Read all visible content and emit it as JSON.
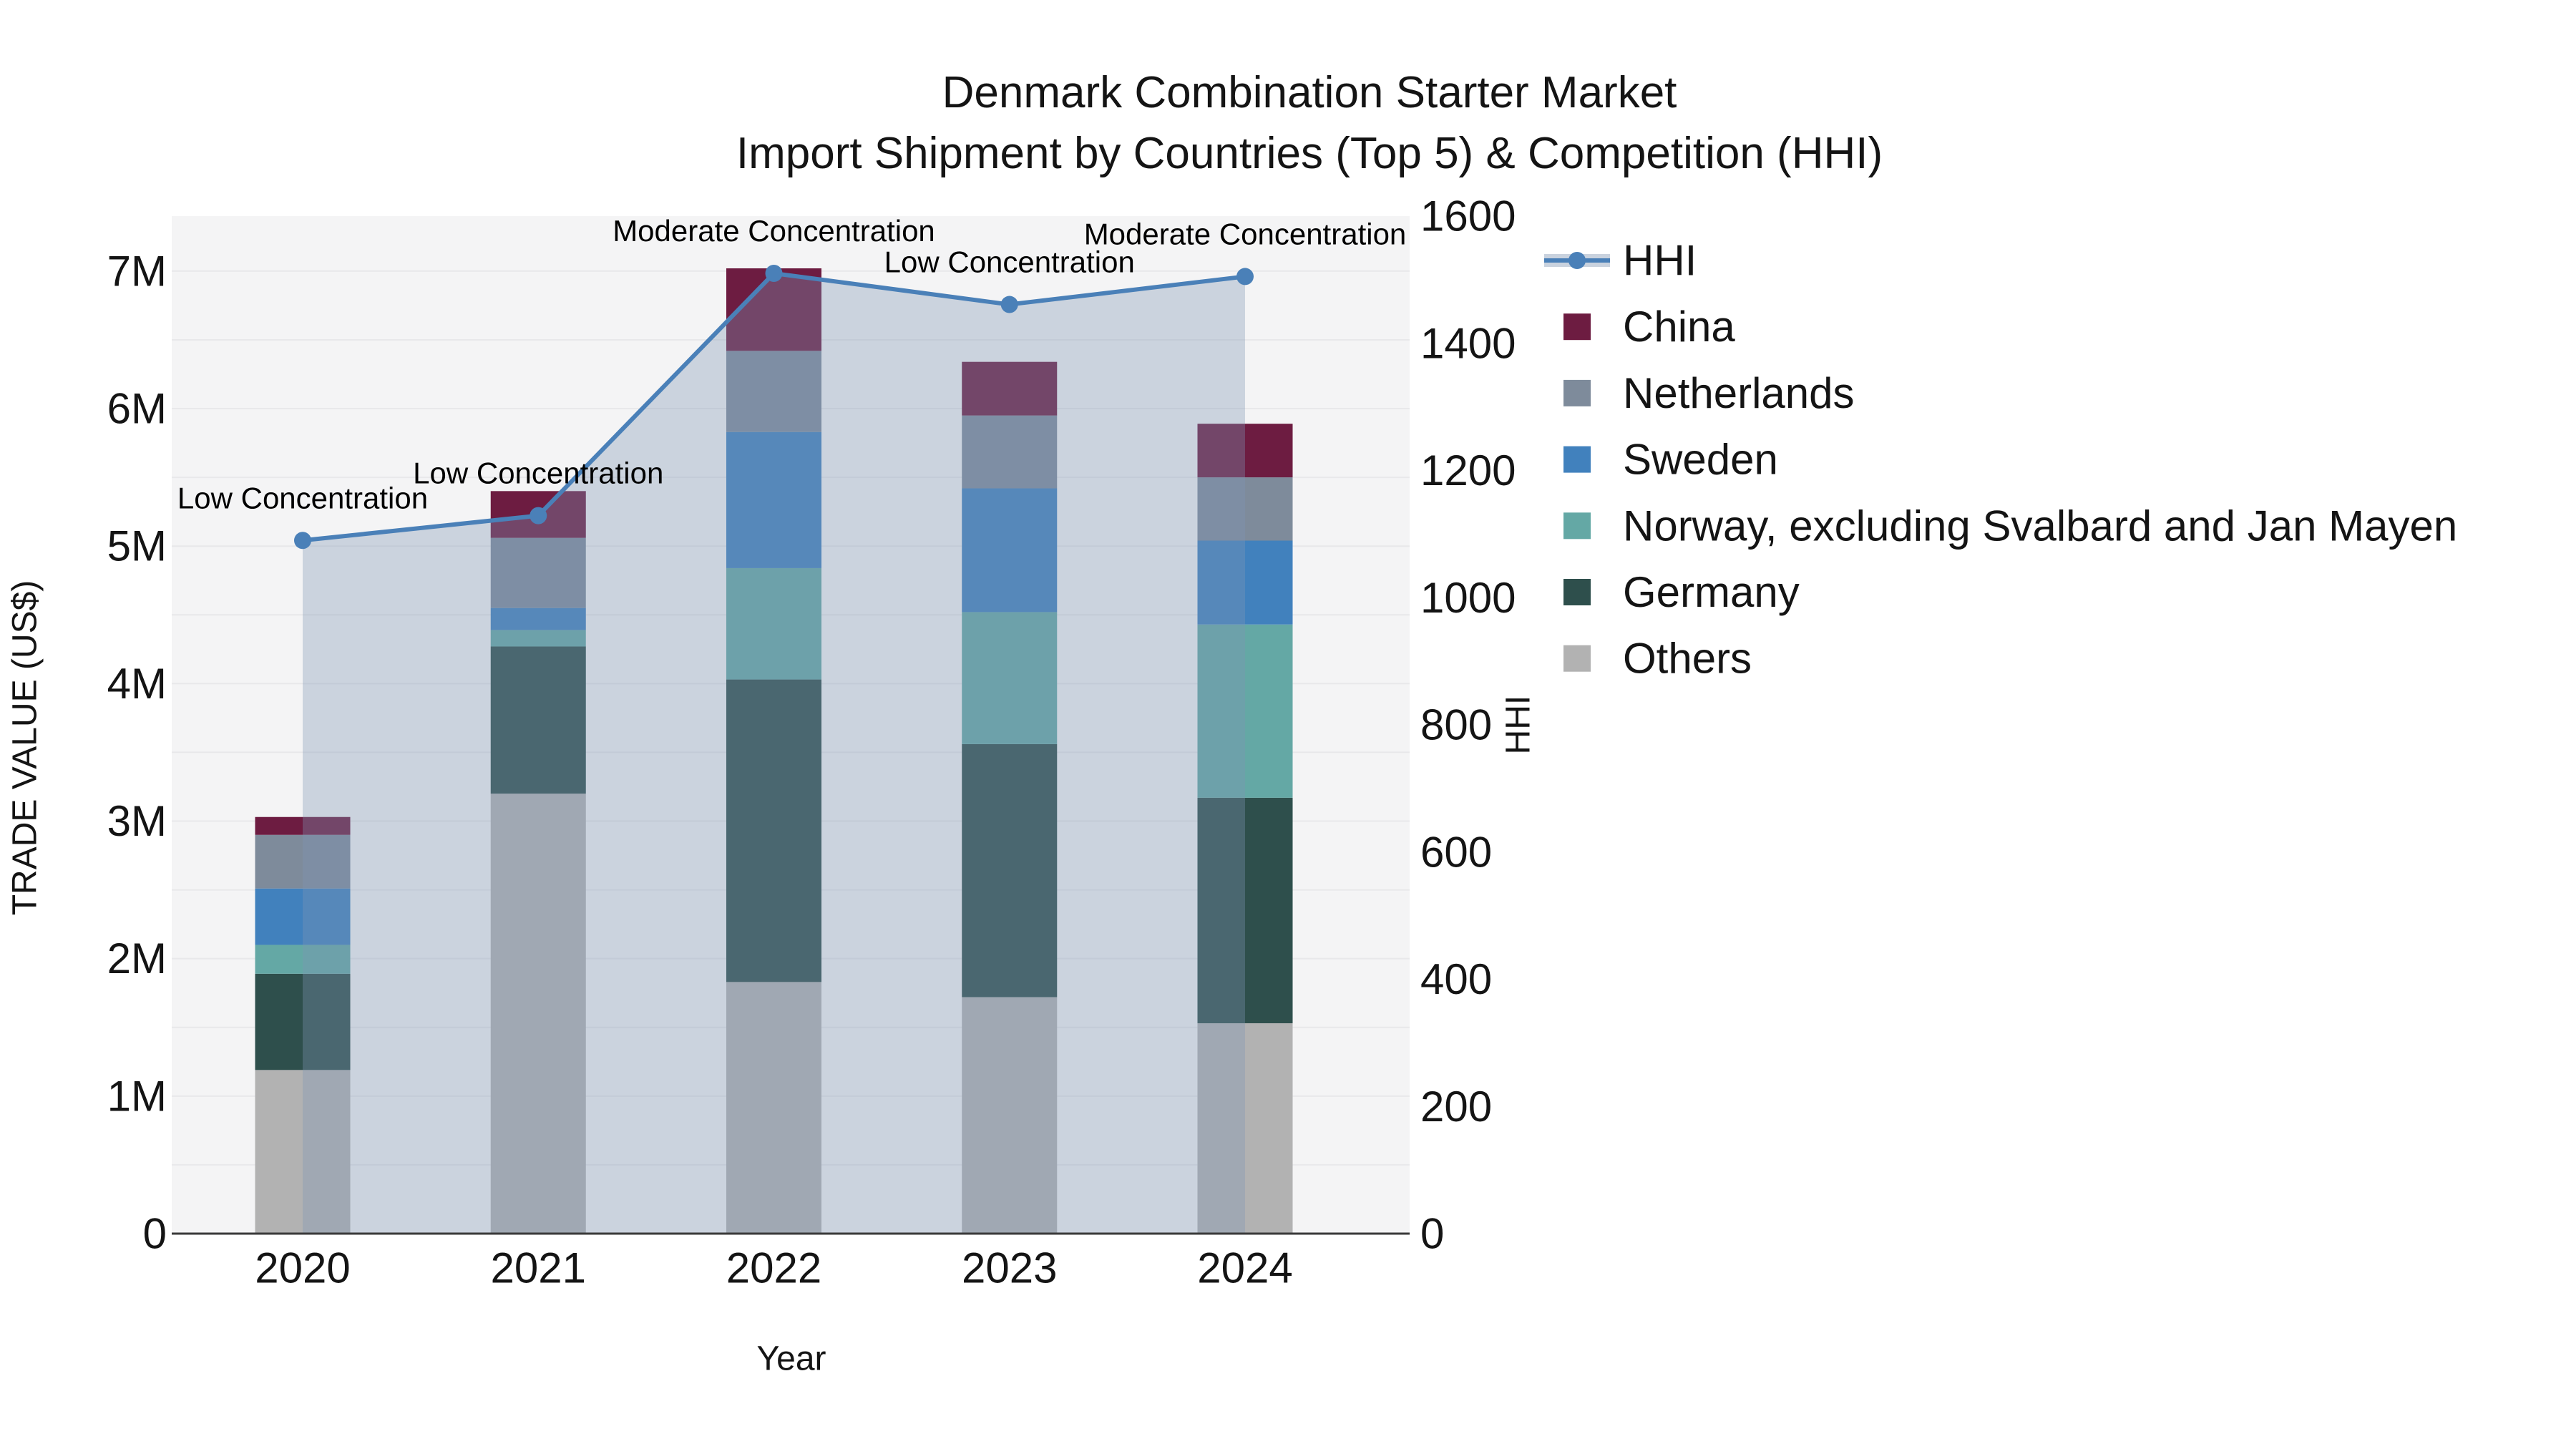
{
  "title": {
    "line1": "Denmark Combination Starter Market",
    "line2": "Import Shipment by Countries (Top 5) & Competition (HHI)"
  },
  "axes": {
    "left": {
      "title": "TRADE VALUE (US$)",
      "tick_labels": [
        "0",
        "1M",
        "2M",
        "3M",
        "4M",
        "5M",
        "6M",
        "7M"
      ],
      "tick_values": [
        0,
        1,
        2,
        3,
        4,
        5,
        6,
        7
      ]
    },
    "right": {
      "title": "HHI",
      "tick_labels": [
        "0",
        "200",
        "400",
        "600",
        "800",
        "1000",
        "1200",
        "1400",
        "1600"
      ],
      "tick_values": [
        0,
        200,
        400,
        600,
        800,
        1000,
        1200,
        1400,
        1600
      ]
    },
    "x": {
      "title": "Year"
    }
  },
  "legend": {
    "items": [
      {
        "label": "HHI",
        "type": "line",
        "color": "#4a80b8"
      },
      {
        "label": "China",
        "type": "swatch",
        "color": "#6d1c41"
      },
      {
        "label": "Netherlands",
        "type": "swatch",
        "color": "#7e8b9b"
      },
      {
        "label": "Sweden",
        "type": "swatch",
        "color": "#4181bd"
      },
      {
        "label": "Norway, excluding Svalbard and Jan Mayen",
        "type": "swatch",
        "color": "#64a8a5"
      },
      {
        "label": "Germany",
        "type": "swatch",
        "color": "#2e4f4c"
      },
      {
        "label": "Others",
        "type": "swatch",
        "color": "#b2b2b2"
      }
    ]
  },
  "chart_data": {
    "type": "bar+line",
    "categories": [
      "2020",
      "2021",
      "2022",
      "2023",
      "2024"
    ],
    "bar_unit": "millions USD",
    "stack_order_note": "series listed bottom to top of stack",
    "series": [
      {
        "name": "Others",
        "color": "#b2b2b2",
        "values": [
          1.19,
          3.2,
          1.83,
          1.72,
          1.53
        ]
      },
      {
        "name": "Germany",
        "color": "#2e4f4c",
        "values": [
          0.7,
          1.07,
          2.2,
          1.84,
          1.64
        ]
      },
      {
        "name": "Norway, excluding Svalbard and Jan Mayen",
        "color": "#64a8a5",
        "values": [
          0.21,
          0.12,
          0.81,
          0.96,
          1.26
        ]
      },
      {
        "name": "Sweden",
        "color": "#4181bd",
        "values": [
          0.41,
          0.16,
          0.99,
          0.9,
          0.61
        ]
      },
      {
        "name": "Netherlands",
        "color": "#7e8b9b",
        "values": [
          0.39,
          0.51,
          0.59,
          0.53,
          0.46
        ]
      },
      {
        "name": "China",
        "color": "#6d1c41",
        "values": [
          0.13,
          0.34,
          0.6,
          0.39,
          0.39
        ]
      }
    ],
    "bar_totals": [
      3.03,
      5.4,
      7.02,
      6.34,
      5.89
    ],
    "line_series": {
      "name": "HHI",
      "values": [
        1090,
        1129,
        1510,
        1461,
        1505
      ],
      "color": "#4a80b8",
      "area_fill": "rgba(125,148,180,0.35)"
    },
    "annotations": [
      {
        "year": "2020",
        "text": "Low Concentration"
      },
      {
        "year": "2021",
        "text": "Low Concentration"
      },
      {
        "year": "2022",
        "text": "Moderate Concentration"
      },
      {
        "year": "2023",
        "text": "Low Concentration"
      },
      {
        "year": "2024",
        "text": "Moderate Concentration"
      }
    ],
    "xlabel": "Year",
    "ylabel_left": "TRADE VALUE (US$)",
    "ylabel_right": "HHI",
    "ylim_left": [
      0,
      7.4
    ],
    "ylim_right": [
      0,
      1600
    ],
    "grid": "horizontal, every 0.5M",
    "legend_position": "right"
  },
  "colors": {
    "plot_bg": "#f4f4f5",
    "grid": "#e8e8ea",
    "axis_line": "#3a3a3a",
    "text": "#141414"
  }
}
